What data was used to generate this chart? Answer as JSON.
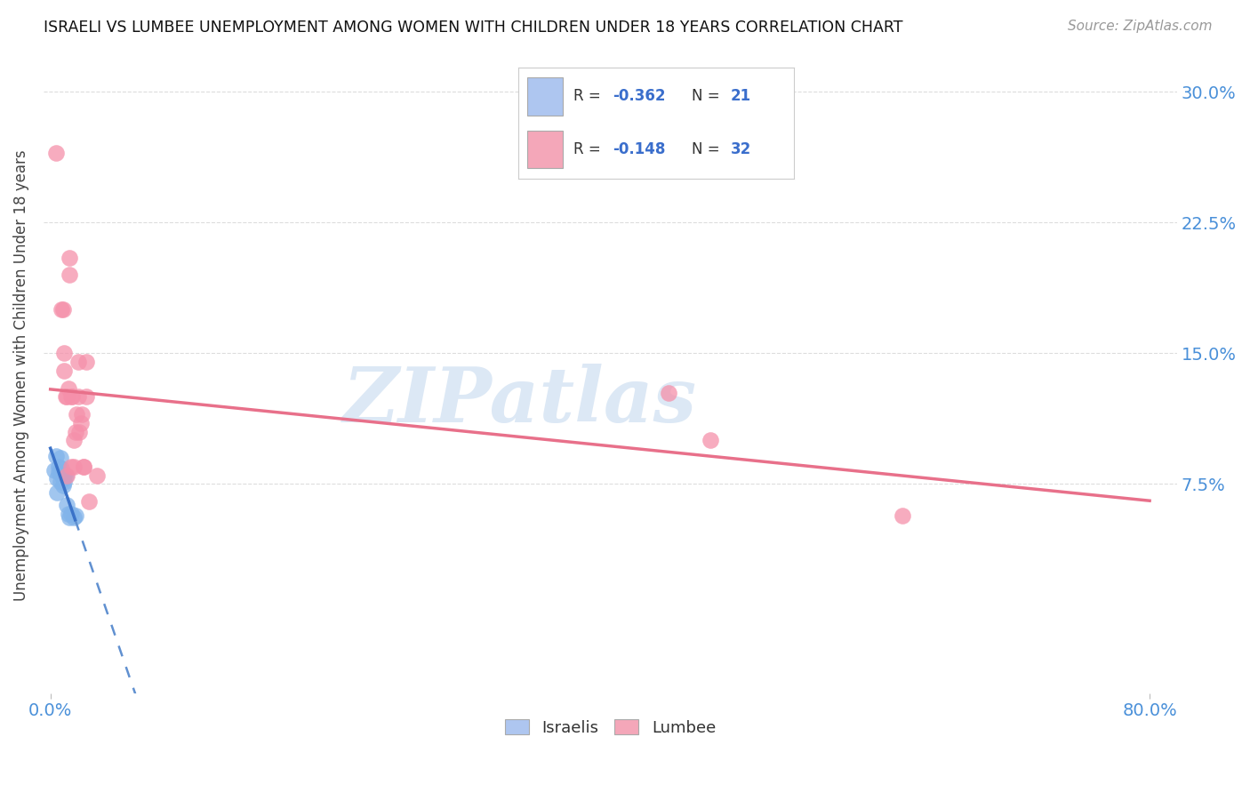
{
  "title": "ISRAELI VS LUMBEE UNEMPLOYMENT AMONG WOMEN WITH CHILDREN UNDER 18 YEARS CORRELATION CHART",
  "source": "Source: ZipAtlas.com",
  "ylabel": "Unemployment Among Women with Children Under 18 years",
  "ytick_labels": [
    "7.5%",
    "15.0%",
    "22.5%",
    "30.0%"
  ],
  "ytick_values": [
    0.075,
    0.15,
    0.225,
    0.3
  ],
  "xlim": [
    -0.005,
    0.82
  ],
  "ylim": [
    -0.045,
    0.32
  ],
  "legend_blue_color": "#aec6f0",
  "legend_pink_color": "#f4a7b9",
  "legend_R_blue": "-0.362",
  "legend_N_blue": "21",
  "legend_R_pink": "-0.148",
  "legend_N_pink": "32",
  "israeli_color": "#82b4ea",
  "lumbee_color": "#f590aa",
  "israeli_scatter": [
    [
      0.003,
      0.083
    ],
    [
      0.004,
      0.091
    ],
    [
      0.005,
      0.07
    ],
    [
      0.005,
      0.078
    ],
    [
      0.006,
      0.082
    ],
    [
      0.006,
      0.085
    ],
    [
      0.007,
      0.076
    ],
    [
      0.007,
      0.09
    ],
    [
      0.008,
      0.081
    ],
    [
      0.008,
      0.084
    ],
    [
      0.009,
      0.078
    ],
    [
      0.009,
      0.074
    ],
    [
      0.01,
      0.08
    ],
    [
      0.01,
      0.076
    ],
    [
      0.011,
      0.08
    ],
    [
      0.012,
      0.063
    ],
    [
      0.013,
      0.058
    ],
    [
      0.014,
      0.056
    ],
    [
      0.015,
      0.058
    ],
    [
      0.017,
      0.056
    ],
    [
      0.018,
      0.057
    ]
  ],
  "lumbee_scatter": [
    [
      0.004,
      0.265
    ],
    [
      0.008,
      0.175
    ],
    [
      0.009,
      0.175
    ],
    [
      0.01,
      0.14
    ],
    [
      0.01,
      0.15
    ],
    [
      0.011,
      0.125
    ],
    [
      0.012,
      0.08
    ],
    [
      0.012,
      0.125
    ],
    [
      0.013,
      0.13
    ],
    [
      0.014,
      0.195
    ],
    [
      0.014,
      0.205
    ],
    [
      0.015,
      0.085
    ],
    [
      0.015,
      0.125
    ],
    [
      0.016,
      0.125
    ],
    [
      0.017,
      0.085
    ],
    [
      0.017,
      0.1
    ],
    [
      0.018,
      0.105
    ],
    [
      0.019,
      0.115
    ],
    [
      0.02,
      0.125
    ],
    [
      0.02,
      0.145
    ],
    [
      0.021,
      0.105
    ],
    [
      0.022,
      0.11
    ],
    [
      0.023,
      0.115
    ],
    [
      0.024,
      0.085
    ],
    [
      0.024,
      0.085
    ],
    [
      0.026,
      0.145
    ],
    [
      0.026,
      0.125
    ],
    [
      0.028,
      0.065
    ],
    [
      0.034,
      0.08
    ],
    [
      0.45,
      0.127
    ],
    [
      0.48,
      0.1
    ],
    [
      0.62,
      0.057
    ]
  ],
  "background_color": "#ffffff",
  "grid_color": "#dddddd",
  "watermark_text": "ZIPatlas",
  "watermark_color": "#dce8f5",
  "lumbee_reg_color": "#e8708a",
  "israeli_reg_color": "#3a72c8",
  "israeli_reg_dash_color": "#6090d0"
}
